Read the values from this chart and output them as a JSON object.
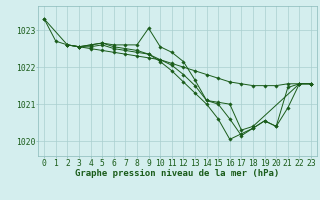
{
  "bg_color": "#d4eeee",
  "grid_color": "#aacfcf",
  "line_color": "#1a5c1a",
  "marker_color": "#1a5c1a",
  "xlabel": "Graphe pression niveau de la mer (hPa)",
  "xlabel_fontsize": 6.5,
  "tick_fontsize": 5.8,
  "ytick_labels": [
    1020,
    1021,
    1022,
    1023
  ],
  "ylim": [
    1019.6,
    1023.65
  ],
  "xlim": [
    -0.5,
    23.5
  ],
  "xtick_labels": [
    0,
    1,
    2,
    3,
    4,
    5,
    6,
    7,
    8,
    9,
    10,
    11,
    12,
    13,
    14,
    15,
    16,
    17,
    18,
    19,
    20,
    21,
    22,
    23
  ],
  "lines": [
    {
      "x": [
        0,
        1,
        2,
        3,
        4,
        5,
        6,
        7,
        8,
        9,
        10,
        11,
        12,
        13,
        14,
        15,
        16,
        17,
        18,
        19,
        20,
        21,
        22,
        23
      ],
      "y": [
        1023.3,
        1022.7,
        1022.6,
        1022.55,
        1022.5,
        1022.45,
        1022.4,
        1022.35,
        1022.3,
        1022.25,
        1022.2,
        1022.1,
        1022.0,
        1021.9,
        1021.8,
        1021.7,
        1021.6,
        1021.55,
        1021.5,
        1021.5,
        1021.5,
        1021.55,
        1021.55,
        1021.55
      ]
    },
    {
      "x": [
        0,
        2,
        3,
        4,
        5,
        6,
        7,
        8,
        9,
        10,
        11,
        12,
        13,
        14,
        15,
        16,
        17,
        18,
        22,
        23
      ],
      "y": [
        1023.3,
        1022.6,
        1022.55,
        1022.6,
        1022.65,
        1022.6,
        1022.6,
        1022.6,
        1023.05,
        1022.55,
        1022.4,
        1022.15,
        1021.65,
        1021.1,
        1021.05,
        1021.0,
        1020.3,
        1020.4,
        1021.55,
        1021.55
      ]
    },
    {
      "x": [
        2,
        3,
        4,
        5,
        6,
        7,
        8,
        9,
        10,
        11,
        12,
        13,
        14,
        15,
        16,
        17,
        18,
        19,
        20,
        21,
        22,
        23
      ],
      "y": [
        1022.6,
        1022.55,
        1022.55,
        1022.6,
        1022.5,
        1022.45,
        1022.4,
        1022.35,
        1022.2,
        1022.05,
        1021.8,
        1021.5,
        1021.1,
        1021.0,
        1020.6,
        1020.15,
        1020.35,
        1020.55,
        1020.4,
        1020.9,
        1021.55,
        1021.55
      ]
    },
    {
      "x": [
        2,
        3,
        4,
        5,
        6,
        7,
        8,
        9,
        10,
        11,
        12,
        13,
        14,
        15,
        16,
        17,
        18,
        19,
        20,
        21,
        22,
        23
      ],
      "y": [
        1022.6,
        1022.55,
        1022.6,
        1022.65,
        1022.55,
        1022.5,
        1022.45,
        1022.35,
        1022.15,
        1021.9,
        1021.6,
        1021.3,
        1021.0,
        1020.6,
        1020.05,
        1020.2,
        1020.35,
        1020.55,
        1020.4,
        1021.45,
        1021.55,
        1021.55
      ]
    }
  ]
}
